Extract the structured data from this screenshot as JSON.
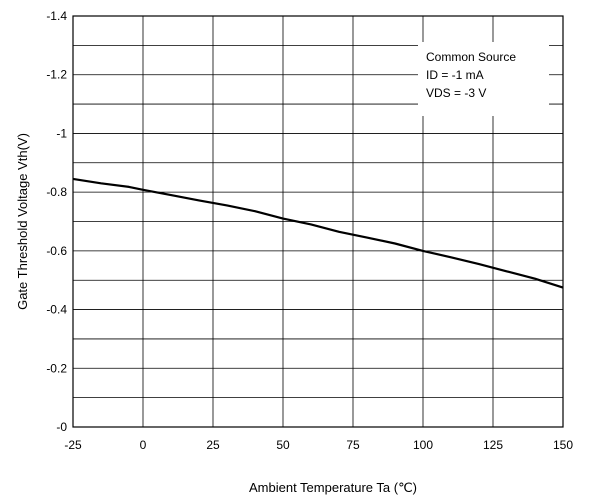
{
  "chart_data": {
    "type": "line",
    "xlabel": "Ambient Temperature  Ta (℃)",
    "ylabel": "Gate Threshold Voltage  Vth(V)",
    "xlim": [
      -25,
      150
    ],
    "ylim": [
      -1.4,
      0
    ],
    "y_axis_inverted": true,
    "grid": true,
    "x_ticks": [
      "-25",
      "0",
      "25",
      "50",
      "75",
      "100",
      "125",
      "150"
    ],
    "y_ticks": [
      "-1.4",
      "-1.2",
      "-1",
      "-0.8",
      "-0.6",
      "-0.4",
      "-0.2",
      "-0"
    ],
    "legend_box": {
      "position": "top-right",
      "lines": [
        "Common Source",
        "ID = -1  mA",
        "VDS = -3 V"
      ]
    },
    "series": [
      {
        "x": [
          -25,
          -15,
          -5,
          0,
          10,
          20,
          30,
          40,
          50,
          60,
          70,
          80,
          90,
          100,
          110,
          120,
          130,
          140,
          150
        ],
        "y": [
          -0.845,
          -0.83,
          -0.818,
          -0.808,
          -0.79,
          -0.772,
          -0.755,
          -0.735,
          -0.71,
          -0.69,
          -0.665,
          -0.645,
          -0.625,
          -0.6,
          -0.578,
          -0.555,
          -0.53,
          -0.505,
          -0.475
        ]
      }
    ]
  }
}
